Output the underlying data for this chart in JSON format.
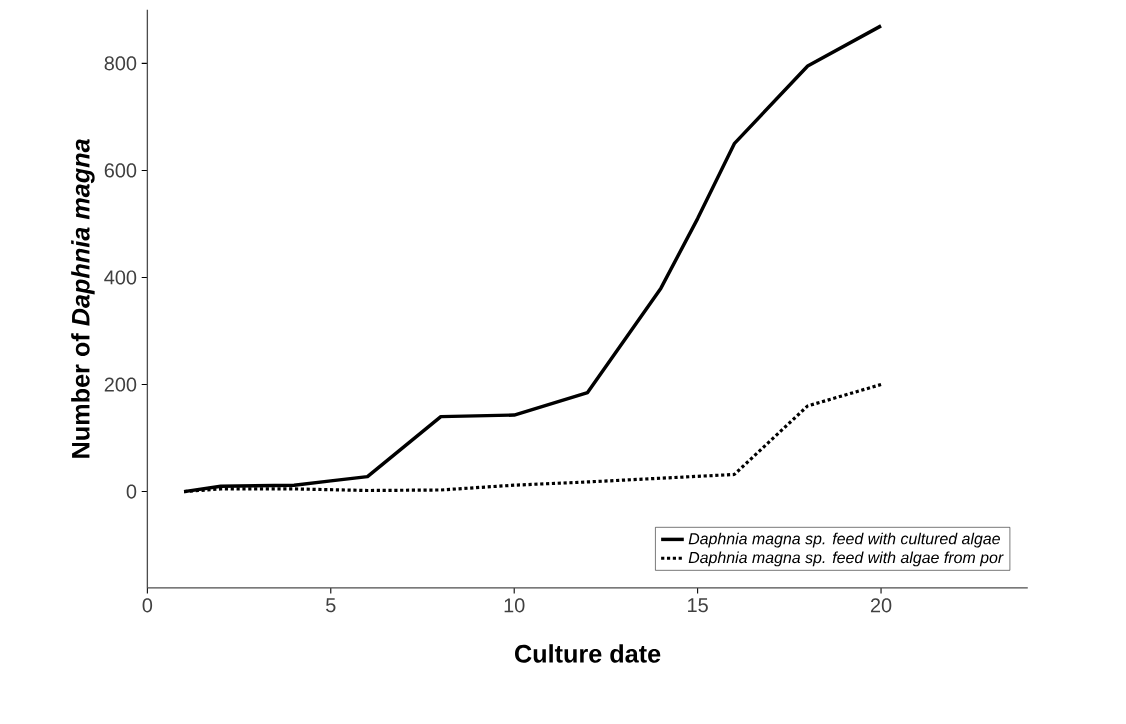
{
  "chart_data": {
    "type": "line",
    "xlabel": "Culture date",
    "ylabel": "Number of *Daphnia magna*",
    "xlim": [
      0,
      24
    ],
    "xticks": [
      0,
      5,
      10,
      15,
      20
    ],
    "ylim": [
      -180,
      900
    ],
    "yticks": [
      0,
      200,
      400,
      600,
      800
    ],
    "grid": false,
    "legend": "bottom right",
    "marker": "none",
    "series": [
      {
        "name": "*Daphnia magna* sp. feed with cultured algae",
        "color": "#000000",
        "line_style": "solid",
        "x": [
          1,
          2,
          4,
          5,
          6,
          8,
          10,
          12,
          14,
          15,
          16,
          18,
          20
        ],
        "values": [
          0,
          10,
          12,
          20,
          28,
          140,
          143,
          185,
          380,
          510,
          650,
          795,
          870
        ]
      },
      {
        "name": "*Daphnia magna* sp. feed with algae from por",
        "color": "#000000",
        "line_style": "dotted",
        "x": [
          1,
          2,
          4,
          6,
          8,
          10,
          12,
          14,
          16,
          18,
          20
        ],
        "values": [
          0,
          5,
          5,
          2,
          3,
          12,
          18,
          25,
          32,
          160,
          200
        ]
      }
    ]
  }
}
